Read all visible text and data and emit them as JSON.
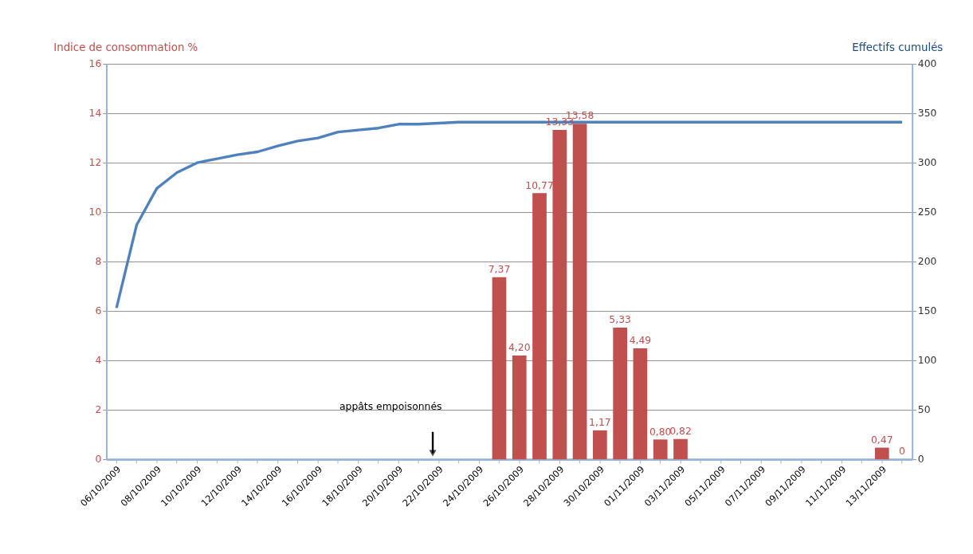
{
  "chart_data": {
    "type": "bar",
    "ylabel": "Indice de consommation %",
    "y2label": "Effectifs cumulés",
    "categories": [
      "06/10/2009",
      null,
      "08/10/2009",
      null,
      "10/10/2009",
      null,
      "12/10/2009",
      null,
      "14/10/2009",
      null,
      "16/10/2009",
      null,
      "18/10/2009",
      null,
      "20/10/2009",
      null,
      "22/10/2009",
      null,
      "24/10/2009",
      null,
      "26/10/2009",
      null,
      "28/10/2009",
      null,
      "30/10/2009",
      null,
      "01/11/2009",
      null,
      "03/11/2009",
      null,
      "05/11/2009",
      null,
      "07/11/2009",
      null,
      "09/11/2009",
      null,
      "11/11/2009",
      null,
      "13/11/2009",
      null
    ],
    "series": [
      {
        "color": "#c0504d",
        "values": [
          null,
          null,
          null,
          null,
          null,
          null,
          null,
          null,
          null,
          null,
          null,
          null,
          null,
          null,
          null,
          null,
          null,
          null,
          null,
          7.37,
          4.2,
          10.77,
          13.33,
          13.58,
          1.17,
          5.33,
          4.49,
          0.8,
          0.82,
          null,
          null,
          null,
          null,
          null,
          null,
          null,
          null,
          null,
          0.47,
          0
        ],
        "value_labels": [
          null,
          null,
          null,
          null,
          null,
          null,
          null,
          null,
          null,
          null,
          null,
          null,
          null,
          null,
          null,
          null,
          null,
          null,
          null,
          "7,37",
          "4,20",
          "10,77",
          "13,33",
          "13,58",
          "1,17",
          "5,33",
          "4,49",
          "0,80",
          "0,82",
          null,
          null,
          null,
          null,
          null,
          null,
          null,
          null,
          null,
          "0,47",
          "0"
        ]
      },
      {
        "type": "line",
        "axis": "y2",
        "color": "#4f81bd",
        "values": [
          153,
          237,
          274,
          290,
          300,
          304,
          308,
          311,
          317,
          322,
          325,
          331,
          333,
          335,
          339,
          339,
          340,
          341,
          341,
          341,
          341,
          341,
          341,
          341,
          341,
          341,
          341,
          341,
          341,
          341,
          341,
          341,
          341,
          341,
          341,
          341,
          341,
          341,
          341,
          341
        ]
      }
    ],
    "ylim": [
      0,
      16
    ],
    "yticks": [
      0,
      2,
      4,
      6,
      8,
      10,
      12,
      14,
      16
    ],
    "y2lim": [
      0,
      400
    ],
    "y2ticks": [
      0,
      50,
      100,
      150,
      200,
      250,
      300,
      350,
      400
    ],
    "grid": "y",
    "marker": "none",
    "line_style": "solid",
    "annotations": [
      "appâts empoisonnés"
    ]
  }
}
